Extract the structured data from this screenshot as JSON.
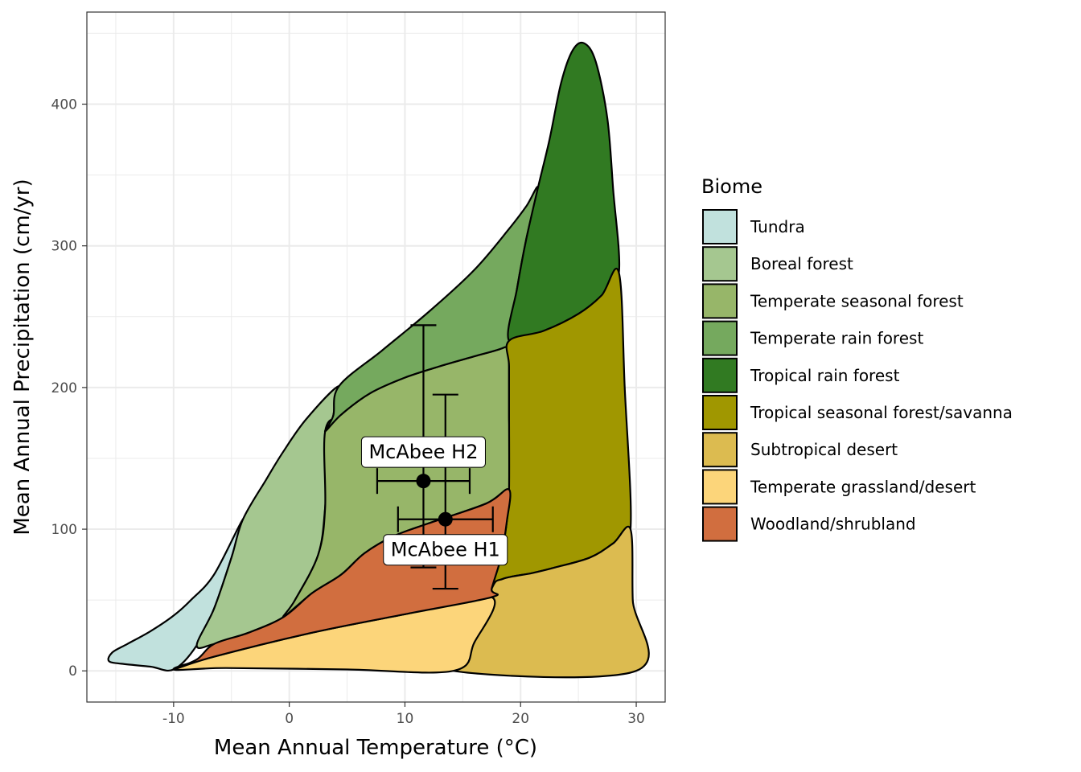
{
  "chart_data": {
    "type": "scatter",
    "title": "",
    "xlabel": "Mean Annual Temperature (°C)",
    "ylabel": "Mean Annual Precipitation (cm/yr)",
    "xlim": [
      -17.5,
      32.5
    ],
    "ylim": [
      -22,
      465
    ],
    "x_ticks": [
      -10,
      0,
      10,
      20,
      30
    ],
    "x_tick_labels": [
      "-10",
      "0",
      "10",
      "20",
      "30"
    ],
    "y_ticks": [
      0,
      100,
      200,
      300,
      400
    ],
    "y_tick_labels": [
      "0",
      "100",
      "200",
      "300",
      "400"
    ],
    "grid": true,
    "legend": {
      "title": "Biome",
      "position": "right",
      "entries": [
        {
          "label": "Tundra",
          "color": "#C1E1DD"
        },
        {
          "label": "Boreal forest",
          "color": "#A5C790"
        },
        {
          "label": "Temperate seasonal forest",
          "color": "#97B669"
        },
        {
          "label": "Temperate rain forest",
          "color": "#75A95E"
        },
        {
          "label": "Tropical rain forest",
          "color": "#317A22"
        },
        {
          "label": "Tropical seasonal forest/savanna",
          "color": "#A09700"
        },
        {
          "label": "Subtropical desert",
          "color": "#DCBB50"
        },
        {
          "label": "Temperate grassland/desert",
          "color": "#FCD57A"
        },
        {
          "label": "Woodland/shrubland",
          "color": "#D16E3F"
        }
      ]
    },
    "biome_polygons": [
      {
        "biome": "Tundra",
        "points": [
          [
            -10,
            1
          ],
          [
            -12,
            3
          ],
          [
            -14.5,
            5
          ],
          [
            -15.6,
            7
          ],
          [
            -15.3,
            13
          ],
          [
            -14,
            19
          ],
          [
            -12,
            28
          ],
          [
            -10,
            39
          ],
          [
            -8.5,
            50
          ],
          [
            -6.5,
            68
          ],
          [
            -4,
            107
          ],
          [
            -5,
            80
          ],
          [
            -6.5,
            44
          ],
          [
            -8,
            18
          ],
          [
            -10,
            1
          ]
        ]
      },
      {
        "biome": "Boreal forest",
        "points": [
          [
            -4,
            107
          ],
          [
            -2,
            135
          ],
          [
            -0.5,
            155
          ],
          [
            1.5,
            178
          ],
          [
            4.3,
            201
          ],
          [
            3.8,
            180
          ],
          [
            3.3,
            150
          ],
          [
            3.1,
            115
          ],
          [
            2.5,
            82
          ],
          [
            0.5,
            50
          ],
          [
            -0.5,
            38
          ],
          [
            -3.5,
            27
          ],
          [
            -6.5,
            19
          ],
          [
            -8,
            18
          ],
          [
            -6.5,
            44
          ],
          [
            -5,
            80
          ],
          [
            -4,
            107
          ]
        ]
      },
      {
        "biome": "Temperate seasonal forest",
        "points": [
          [
            3.1,
            169
          ],
          [
            4.5,
            181
          ],
          [
            7,
            196
          ],
          [
            10,
            207
          ],
          [
            13,
            215
          ],
          [
            16,
            222
          ],
          [
            18.5,
            228
          ],
          [
            19,
            233
          ],
          [
            19,
            215
          ],
          [
            19,
            180
          ],
          [
            19,
            128
          ],
          [
            17,
            118
          ],
          [
            12,
            104
          ],
          [
            9,
            95
          ],
          [
            6.5,
            83
          ],
          [
            4.5,
            68
          ],
          [
            2,
            55
          ],
          [
            -0.5,
            38
          ],
          [
            0.5,
            50
          ],
          [
            2.5,
            82
          ],
          [
            3.1,
            115
          ],
          [
            3.1,
            169
          ]
        ]
      },
      {
        "biome": "Temperate rain forest",
        "points": [
          [
            4.3,
            201
          ],
          [
            8,
            226
          ],
          [
            12,
            253
          ],
          [
            16,
            283
          ],
          [
            19,
            312
          ],
          [
            20.5,
            328
          ],
          [
            21.5,
            341
          ],
          [
            20.5,
            305
          ],
          [
            19.7,
            270
          ],
          [
            19,
            233
          ],
          [
            18.5,
            228
          ],
          [
            16,
            222
          ],
          [
            13,
            215
          ],
          [
            10,
            207
          ],
          [
            7,
            196
          ],
          [
            4.5,
            181
          ],
          [
            3.1,
            169
          ],
          [
            3.8,
            180
          ],
          [
            4.3,
            201
          ]
        ]
      },
      {
        "biome": "Tropical rain forest",
        "points": [
          [
            21.5,
            341
          ],
          [
            22.5,
            375
          ],
          [
            23.5,
            415
          ],
          [
            24.5,
            438
          ],
          [
            25.5,
            443
          ],
          [
            26.5,
            430
          ],
          [
            27.5,
            390
          ],
          [
            28,
            340
          ],
          [
            28.5,
            281
          ],
          [
            27,
            265
          ],
          [
            25,
            252
          ],
          [
            22,
            240
          ],
          [
            19,
            233
          ],
          [
            19.7,
            270
          ],
          [
            20.5,
            305
          ],
          [
            21.5,
            341
          ]
        ]
      },
      {
        "biome": "Tropical seasonal forest/savanna",
        "points": [
          [
            28.5,
            281
          ],
          [
            29,
            200
          ],
          [
            29.5,
            100
          ],
          [
            28,
            90
          ],
          [
            26,
            80
          ],
          [
            23,
            73
          ],
          [
            21,
            69
          ],
          [
            18.5,
            65
          ],
          [
            17.5,
            58
          ],
          [
            18.3,
            80
          ],
          [
            18.8,
            105
          ],
          [
            19,
            128
          ],
          [
            19,
            180
          ],
          [
            19,
            215
          ],
          [
            19,
            233
          ],
          [
            22,
            240
          ],
          [
            25,
            252
          ],
          [
            27,
            265
          ],
          [
            28.5,
            281
          ]
        ]
      },
      {
        "biome": "Subtropical desert",
        "points": [
          [
            29.5,
            100
          ],
          [
            29.7,
            50
          ],
          [
            30,
            0
          ],
          [
            14.2,
            0
          ],
          [
            16,
            20
          ],
          [
            17.5,
            58
          ],
          [
            18.5,
            65
          ],
          [
            21,
            69
          ],
          [
            23,
            73
          ],
          [
            26,
            80
          ],
          [
            28,
            90
          ],
          [
            29.5,
            100
          ]
        ]
      },
      {
        "biome": "Temperate grassland/desert",
        "points": [
          [
            -10,
            1
          ],
          [
            -5.5,
            2
          ],
          [
            5,
            1
          ],
          [
            14.2,
            0
          ],
          [
            16,
            20
          ],
          [
            17.5,
            52
          ],
          [
            10,
            40
          ],
          [
            2,
            27
          ],
          [
            -6.5,
            10
          ],
          [
            -10,
            1
          ]
        ]
      },
      {
        "biome": "Woodland/shrubland",
        "points": [
          [
            -10,
            1
          ],
          [
            -8,
            8
          ],
          [
            -6.5,
            19
          ],
          [
            -3.5,
            27
          ],
          [
            -0.5,
            38
          ],
          [
            2,
            55
          ],
          [
            4.5,
            68
          ],
          [
            6.5,
            83
          ],
          [
            9,
            95
          ],
          [
            12,
            104
          ],
          [
            17,
            118
          ],
          [
            19,
            128
          ],
          [
            18.8,
            105
          ],
          [
            18.3,
            80
          ],
          [
            17.5,
            58
          ],
          [
            17.5,
            52
          ],
          [
            10,
            40
          ],
          [
            2,
            27
          ],
          [
            -6.5,
            10
          ],
          [
            -10,
            1
          ]
        ]
      }
    ],
    "points": [
      {
        "label": "McAbee H2",
        "x": 11.6,
        "y": 134,
        "xmin": 7.6,
        "xmax": 15.6,
        "ymin": 73,
        "ymax": 244,
        "label_position": "above"
      },
      {
        "label": "McAbee H1",
        "x": 13.5,
        "y": 107,
        "xmin": 9.4,
        "xmax": 17.6,
        "ymin": 58,
        "ymax": 195,
        "label_position": "below"
      }
    ]
  }
}
